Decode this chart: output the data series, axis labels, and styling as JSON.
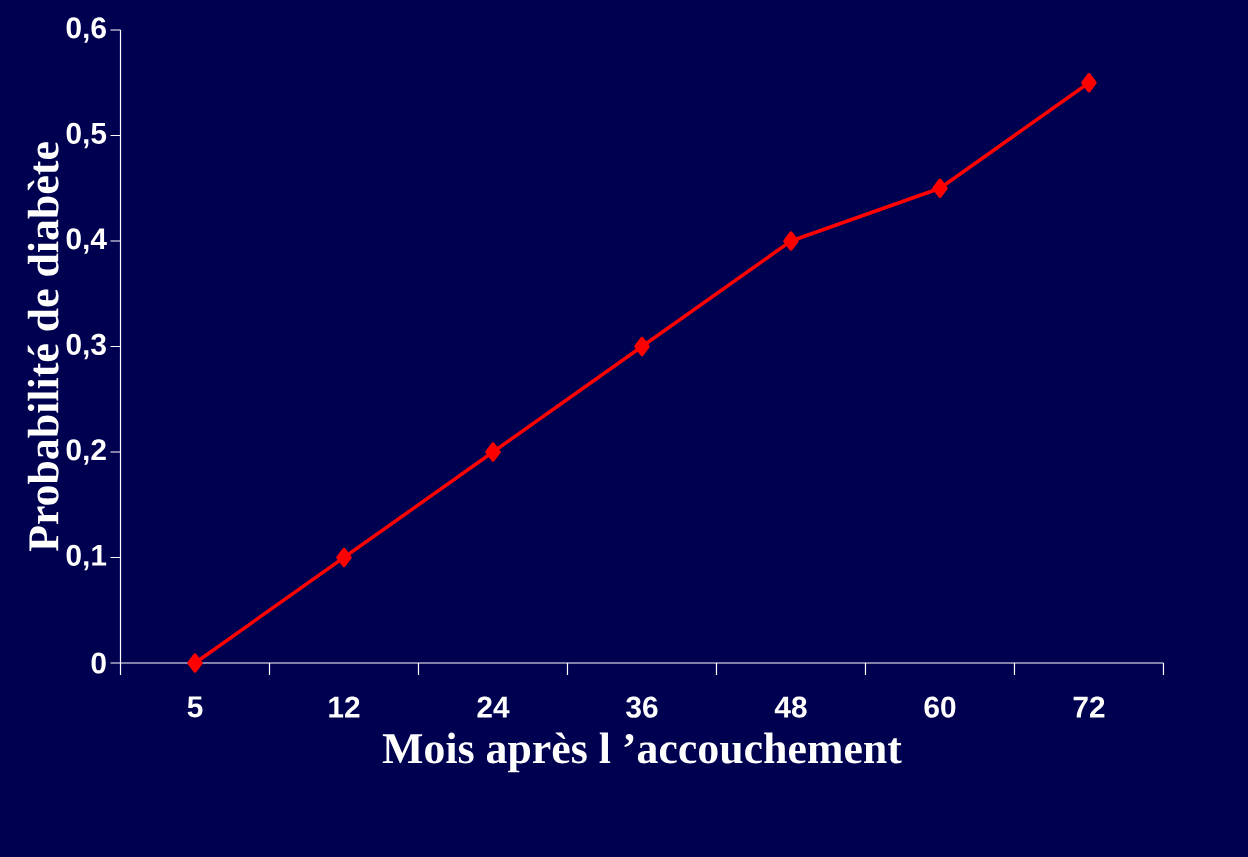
{
  "chart_data": {
    "type": "line",
    "xlabel": "Mois après l ’accouchement",
    "ylabel": "Probabilité de diabète",
    "categories": [
      "5",
      "12",
      "24",
      "36",
      "48",
      "60",
      "72"
    ],
    "values": [
      0,
      0.1,
      0.2,
      0.3,
      0.4,
      0.45,
      0.55
    ],
    "color": "#ff0000",
    "ylim": [
      0,
      0.6
    ],
    "yticks": [
      0,
      {
        "value": 0.1,
        "label": "0,1"
      },
      {
        "value": 0.2,
        "label": "0,2"
      },
      {
        "value": 0.3,
        "label": "0,3"
      },
      {
        "value": 0.4,
        "label": "0,4"
      },
      {
        "value": 0.5,
        "label": "0,5"
      },
      {
        "value": 0.6,
        "label": "0,6"
      }
    ],
    "marker": "diamond",
    "line_style": "solid"
  }
}
